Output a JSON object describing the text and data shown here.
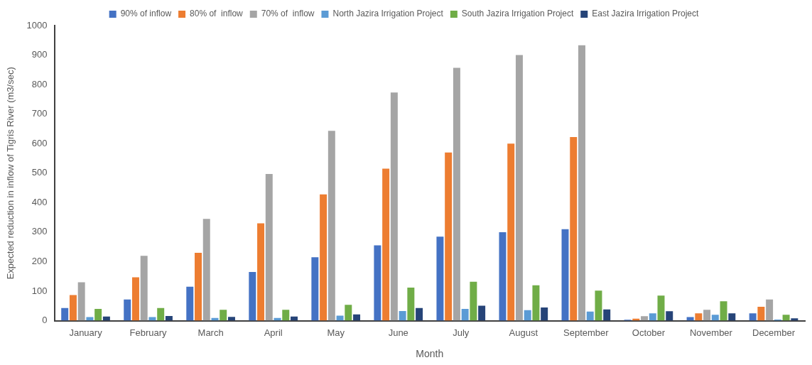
{
  "chart_data": {
    "type": "bar",
    "xlabel": "Month",
    "ylabel": "Expected reduction in inflow of Tigris River (m3/sec)",
    "categories": [
      "January",
      "February",
      "March",
      "April",
      "May",
      "June",
      "July",
      "August",
      "September",
      "October",
      "November",
      "December"
    ],
    "series": [
      {
        "name": "90% of inflow",
        "color": "#4472c4",
        "values": [
          43,
          72,
          115,
          165,
          215,
          255,
          285,
          300,
          310,
          3,
          12,
          25
        ]
      },
      {
        "name": "80% of  inflow",
        "color": "#ed7d31",
        "values": [
          87,
          147,
          230,
          330,
          428,
          515,
          570,
          600,
          622,
          7,
          25,
          47
        ]
      },
      {
        "name": "70% of  inflow",
        "color": "#a5a5a5",
        "values": [
          130,
          220,
          345,
          497,
          643,
          773,
          857,
          900,
          933,
          15,
          37,
          72
        ]
      },
      {
        "name": "North Jazira Irrigation Project",
        "color": "#5b9bd5",
        "values": [
          12,
          12,
          9,
          9,
          17,
          33,
          40,
          36,
          31,
          25,
          20,
          4
        ]
      },
      {
        "name": "South Jazira Irrigation Project",
        "color": "#70ad47",
        "values": [
          40,
          43,
          37,
          37,
          54,
          112,
          132,
          120,
          102,
          85,
          66,
          20
        ]
      },
      {
        "name": "East Jazira Irrigation Project",
        "color": "#264478",
        "values": [
          14,
          16,
          13,
          14,
          21,
          43,
          51,
          45,
          38,
          32,
          25,
          8
        ]
      }
    ],
    "ylim": [
      0,
      1000
    ],
    "yticks": [
      0,
      100,
      200,
      300,
      400,
      500,
      600,
      700,
      800,
      900,
      1000
    ],
    "grid": false,
    "legend": "top"
  }
}
